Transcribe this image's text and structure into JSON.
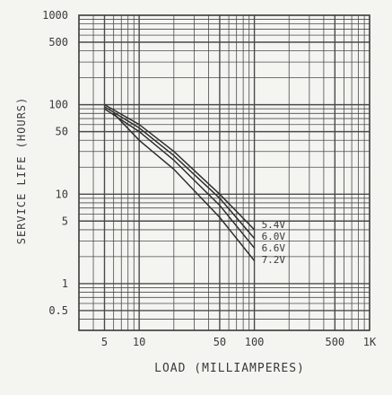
{
  "chart_data": {
    "type": "line",
    "xscale": "log",
    "yscale": "log",
    "xlim": [
      3,
      1000
    ],
    "ylim": [
      0.3,
      1000
    ],
    "grid": true,
    "xlabel": "LOAD (MILLIAMPERES)",
    "ylabel": "SERVICE LIFE (HOURS)",
    "title": "",
    "x_ticks": [
      {
        "value": 5,
        "label": "5"
      },
      {
        "value": 10,
        "label": "10"
      },
      {
        "value": 50,
        "label": "50"
      },
      {
        "value": 100,
        "label": "100"
      },
      {
        "value": 500,
        "label": "500"
      },
      {
        "value": 1000,
        "label": "1K"
      }
    ],
    "y_ticks": [
      {
        "value": 0.5,
        "label": "0.5"
      },
      {
        "value": 1,
        "label": "1"
      },
      {
        "value": 5,
        "label": "5"
      },
      {
        "value": 10,
        "label": "10"
      },
      {
        "value": 50,
        "label": "50"
      },
      {
        "value": 100,
        "label": "100"
      },
      {
        "value": 500,
        "label": "500"
      },
      {
        "value": 1000,
        "label": "1000"
      }
    ],
    "series": [
      {
        "name": "5.4V",
        "x": [
          5,
          10,
          20,
          50,
          100
        ],
        "y": [
          100,
          60,
          30,
          10,
          4
        ]
      },
      {
        "name": "6.0V",
        "x": [
          5,
          10,
          20,
          50,
          100
        ],
        "y": [
          95,
          55,
          27,
          9,
          3.2
        ]
      },
      {
        "name": "6.6V",
        "x": [
          5,
          10,
          20,
          50,
          100
        ],
        "y": [
          90,
          50,
          24,
          7.5,
          2.5
        ]
      },
      {
        "name": "7.2V",
        "x": [
          6,
          10,
          20,
          50,
          100
        ],
        "y": [
          80,
          40,
          19,
          5.5,
          1.8
        ]
      }
    ]
  }
}
